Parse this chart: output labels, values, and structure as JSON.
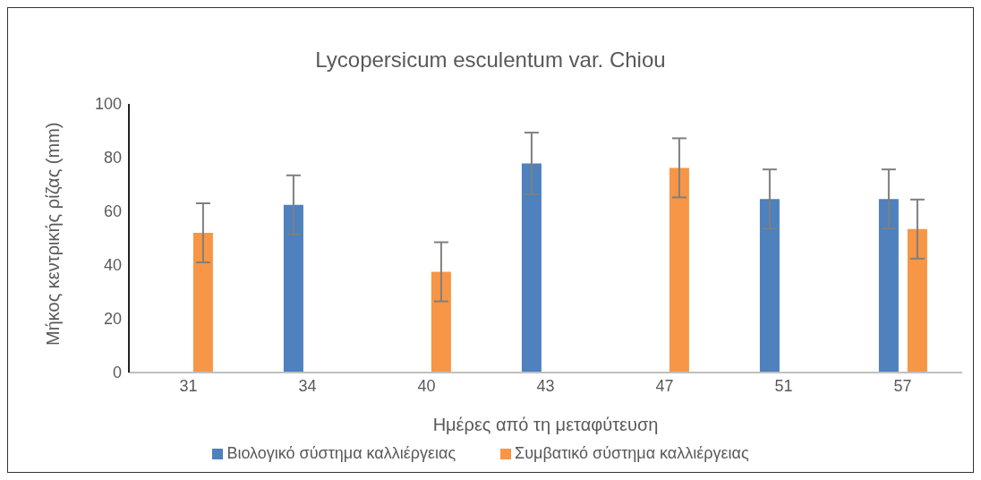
{
  "chart_data": {
    "type": "bar",
    "title": "Lycopersicum esculentum var. Chiou",
    "xlabel": "Ημέρες από τη μεταφύτευση",
    "ylabel": "Μήκος κεντρικής ρίζας (mm)",
    "categories": [
      "31",
      "34",
      "40",
      "43",
      "47",
      "51",
      "57"
    ],
    "series": [
      {
        "name": "Βιολογικό σύστημα καλλιέργειας",
        "color": "#4e81bd",
        "values": [
          0,
          62.4,
          0,
          77.8,
          0,
          64.6,
          64.6
        ],
        "errors": [
          0,
          11,
          0,
          11.5,
          0,
          11,
          11
        ]
      },
      {
        "name": "Συμβατικό σύστημα καλλιέργειας",
        "color": "#f79646",
        "values": [
          52,
          0,
          37.5,
          0,
          76.2,
          0,
          53.4
        ],
        "errors": [
          11,
          0,
          11,
          0,
          11,
          0,
          11
        ]
      }
    ],
    "ylim": [
      0,
      100
    ],
    "yticks": [
      0,
      20,
      40,
      60,
      80,
      100
    ],
    "grid": false,
    "legend": "bottom"
  }
}
